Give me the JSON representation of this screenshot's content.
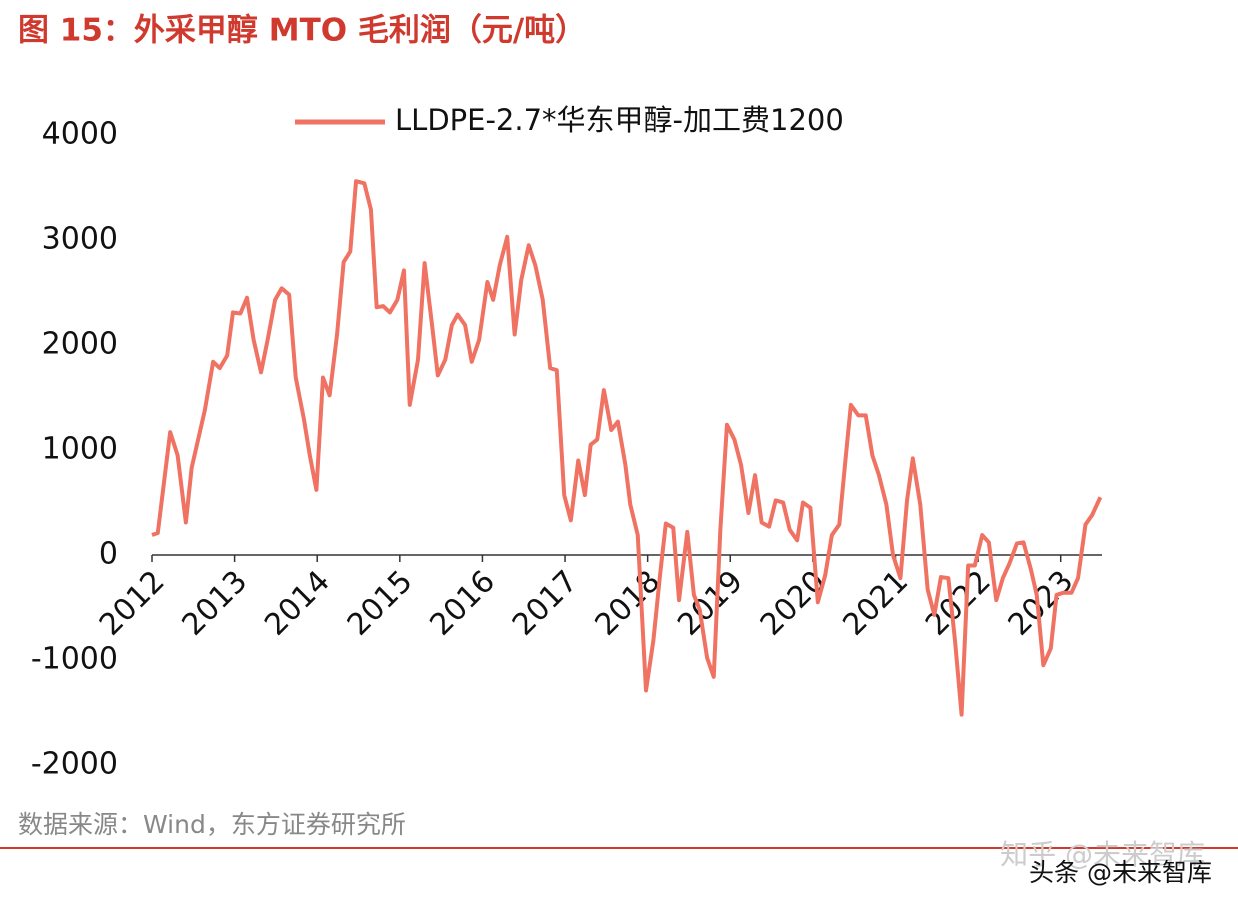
{
  "chart_data": {
    "type": "line",
    "title": "图 15：外采甲醇 MTO 毛利润（元/吨）",
    "source": "数据来源：Wind，东方证券研究所",
    "watermarks": [
      "知乎 @未来智库",
      "头条 @未来智库"
    ],
    "x": [
      2012.0,
      2012.07,
      2012.22,
      2012.31,
      2012.41,
      2012.48,
      2012.64,
      2012.74,
      2012.82,
      2012.91,
      2012.98,
      2013.07,
      2013.15,
      2013.23,
      2013.32,
      2013.4,
      2013.49,
      2013.57,
      2013.66,
      2013.74,
      2013.84,
      2013.91,
      2013.99,
      2014.07,
      2014.15,
      2014.24,
      2014.32,
      2014.4,
      2014.47,
      2014.57,
      2014.65,
      2014.72,
      2014.8,
      2014.88,
      2014.97,
      2015.05,
      2015.12,
      2015.22,
      2015.3,
      2015.39,
      2015.46,
      2015.55,
      2015.63,
      2015.7,
      2015.79,
      2015.87,
      2015.96,
      2016.06,
      2016.13,
      2016.21,
      2016.3,
      2016.39,
      2016.47,
      2016.56,
      2016.64,
      2016.73,
      2016.82,
      2016.9,
      2016.99,
      2017.07,
      2017.16,
      2017.24,
      2017.31,
      2017.39,
      2017.47,
      2017.56,
      2017.64,
      2017.73,
      2017.79,
      2017.88,
      2017.98,
      2018.07,
      2018.15,
      2018.22,
      2018.31,
      2018.38,
      2018.48,
      2018.56,
      2018.63,
      2018.72,
      2018.8,
      2018.88,
      2018.96,
      2019.05,
      2019.13,
      2019.22,
      2019.3,
      2019.38,
      2019.47,
      2019.55,
      2019.64,
      2019.72,
      2019.81,
      2019.88,
      2019.97,
      2020.06,
      2020.15,
      2020.23,
      2020.32,
      2020.4,
      2020.46,
      2020.55,
      2020.64,
      2020.72,
      2020.8,
      2020.89,
      2020.97,
      2021.06,
      2021.14,
      2021.21,
      2021.3,
      2021.39,
      2021.47,
      2021.55,
      2021.64,
      2021.72,
      2021.8,
      2021.88,
      2021.96,
      2022.05,
      2022.13,
      2022.22,
      2022.3,
      2022.38,
      2022.47,
      2022.55,
      2022.64,
      2022.71,
      2022.79,
      2022.88,
      2022.95,
      2023.03,
      2023.13,
      2023.21,
      2023.3,
      2023.38,
      2023.48
    ],
    "series": [
      {
        "name": "LLDPE-2.7*华东甲醇-加工费1200",
        "color": "#ef7262",
        "values": [
          190,
          210,
          1170,
          950,
          310,
          830,
          1380,
          1840,
          1780,
          1900,
          2310,
          2300,
          2450,
          2050,
          1740,
          2050,
          2430,
          2540,
          2480,
          1690,
          1290,
          950,
          620,
          1690,
          1520,
          2100,
          2790,
          2890,
          3560,
          3540,
          3290,
          2360,
          2370,
          2310,
          2430,
          2710,
          1430,
          1860,
          2780,
          2190,
          1710,
          1860,
          2190,
          2290,
          2190,
          1840,
          2050,
          2600,
          2430,
          2760,
          3030,
          2100,
          2620,
          2950,
          2760,
          2430,
          1780,
          1760,
          570,
          330,
          900,
          570,
          1050,
          1100,
          1570,
          1190,
          1270,
          860,
          480,
          190,
          -1290,
          -810,
          -190,
          300,
          260,
          -430,
          220,
          -380,
          -520,
          -980,
          -1160,
          240,
          1240,
          1100,
          860,
          400,
          760,
          310,
          270,
          520,
          500,
          240,
          140,
          500,
          450,
          -450,
          -190,
          190,
          290,
          950,
          1430,
          1330,
          1330,
          950,
          760,
          480,
          0,
          -220,
          520,
          920,
          480,
          -330,
          -570,
          -210,
          -220,
          -810,
          -1520,
          -100,
          -100,
          190,
          120,
          -430,
          -220,
          -80,
          110,
          120,
          -140,
          -380,
          -1050,
          -890,
          -380,
          -360,
          -360,
          -220,
          290,
          380,
          550
        ]
      }
    ],
    "xlim": [
      2012,
      2023.5
    ],
    "xticks": [
      2012,
      2013,
      2014,
      2015,
      2016,
      2017,
      2018,
      2019,
      2020,
      2021,
      2022,
      2023
    ],
    "ylim": [
      -2000,
      4000
    ],
    "yticks": [
      -2000,
      -1000,
      0,
      1000,
      2000,
      3000,
      4000
    ],
    "grid": false
  }
}
